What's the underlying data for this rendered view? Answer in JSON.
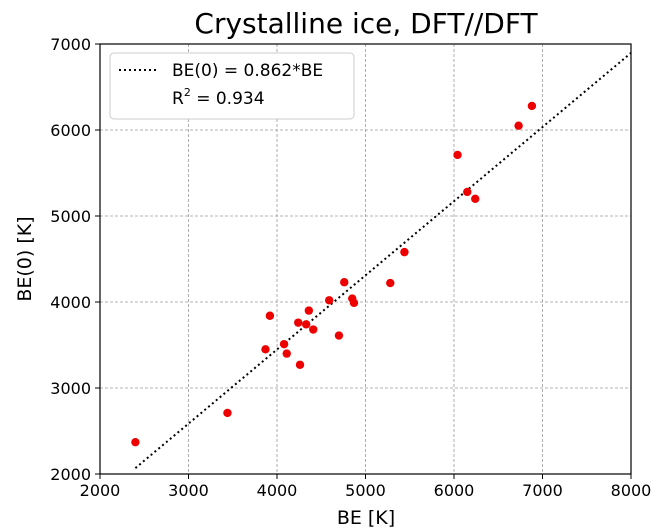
{
  "chart_data": {
    "type": "scatter",
    "title": "Crystalline ice, DFT//DFT",
    "xlabel": "BE [K]",
    "ylabel": "BE(0) [K]",
    "xlim": [
      2000,
      8000
    ],
    "ylim": [
      2000,
      7000
    ],
    "xticks": [
      2000,
      3000,
      4000,
      5000,
      6000,
      7000,
      8000
    ],
    "yticks": [
      2000,
      3000,
      4000,
      5000,
      6000,
      7000
    ],
    "xtick_labels": [
      "2000",
      "3000",
      "4000",
      "5000",
      "6000",
      "7000",
      "8000"
    ],
    "ytick_labels": [
      "2000",
      "3000",
      "4000",
      "5000",
      "6000",
      "7000"
    ],
    "grid": true,
    "legend_position": "top-left",
    "series": [
      {
        "type": "line",
        "name": "BE(0) = 0.862*BE",
        "style": "dotted",
        "color": "#000000",
        "slope": 0.862,
        "x_range": [
          2400,
          8000
        ]
      },
      {
        "type": "scatter",
        "color": "#ee0000",
        "x": [
          2400,
          3440,
          3870,
          3920,
          4080,
          4110,
          4240,
          4260,
          4330,
          4360,
          4410,
          4590,
          4700,
          4760,
          4850,
          4870,
          5280,
          5440,
          6040,
          6150,
          6240,
          6730,
          6880
        ],
        "y": [
          2370,
          2710,
          3450,
          3840,
          3510,
          3400,
          3760,
          3270,
          3740,
          3900,
          3680,
          4020,
          3610,
          4230,
          4040,
          3990,
          4220,
          4580,
          5710,
          5280,
          5200,
          6050,
          6280
        ]
      }
    ],
    "legend": {
      "fit_label": "BE(0) = 0.862*BE",
      "r2_prefix": "R",
      "r2_sup": "2",
      "r2_value": " = 0.934"
    }
  }
}
